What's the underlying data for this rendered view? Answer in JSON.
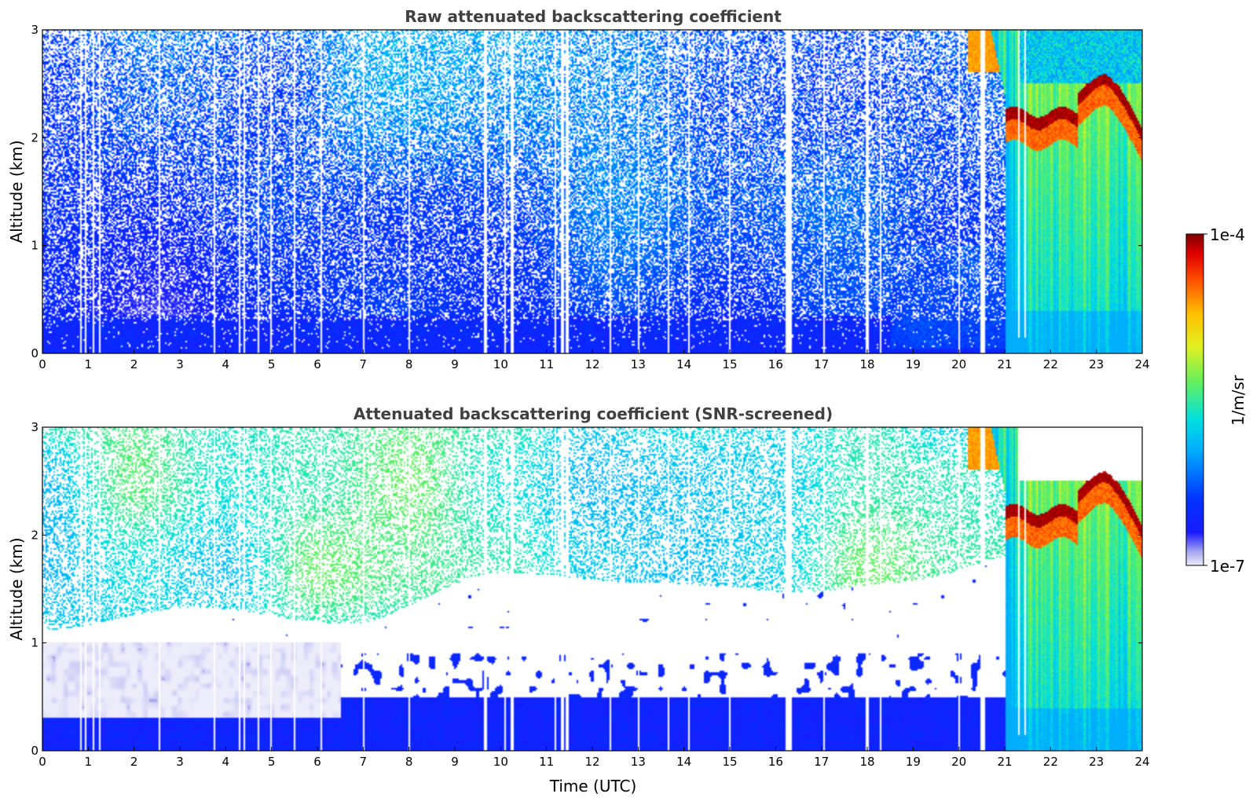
{
  "chart_data": [
    {
      "type": "heatmap",
      "title": "Raw attenuated backscattering coefficient",
      "xlabel": "",
      "ylabel": "Altitude (km)",
      "xlim": [
        0,
        24
      ],
      "ylim": [
        0,
        3
      ],
      "x_ticks": [
        0,
        1,
        2,
        3,
        4,
        5,
        6,
        7,
        8,
        9,
        10,
        11,
        12,
        13,
        14,
        15,
        16,
        17,
        18,
        19,
        20,
        21,
        22,
        23,
        24
      ],
      "y_ticks": [
        0,
        1,
        2,
        3
      ],
      "x_tick_labels": [
        "0",
        "1",
        "2",
        "3",
        "4",
        "5",
        "6",
        "7",
        "8",
        "9",
        "10",
        "11",
        "12",
        "13",
        "14",
        "15",
        "16",
        "17",
        "18",
        "19",
        "20",
        "21",
        "22",
        "23",
        "24"
      ],
      "y_tick_labels": [
        "0",
        "1",
        "2",
        "3"
      ],
      "screened": false
    },
    {
      "type": "heatmap",
      "title": "Attenuated backscattering coefficient (SNR-screened)",
      "xlabel": "Time (UTC)",
      "ylabel": "Altitude (km)",
      "xlim": [
        0,
        24
      ],
      "ylim": [
        0,
        3
      ],
      "x_ticks": [
        0,
        1,
        2,
        3,
        4,
        5,
        6,
        7,
        8,
        9,
        10,
        11,
        12,
        13,
        14,
        15,
        16,
        17,
        18,
        19,
        20,
        21,
        22,
        23,
        24
      ],
      "y_ticks": [
        0,
        1,
        2,
        3
      ],
      "x_tick_labels": [
        "0",
        "1",
        "2",
        "3",
        "4",
        "5",
        "6",
        "7",
        "8",
        "9",
        "10",
        "11",
        "12",
        "13",
        "14",
        "15",
        "16",
        "17",
        "18",
        "19",
        "20",
        "21",
        "22",
        "23",
        "24"
      ],
      "y_tick_labels": [
        "0",
        "1",
        "2",
        "3"
      ],
      "screened": true
    }
  ],
  "colorbar": {
    "label": "1/m/sr",
    "max_label": "1e-4",
    "min_label": "1e-7",
    "scale": "log",
    "range": [
      1e-07,
      0.0001
    ],
    "colormap": "jet-like with white-lavender low end"
  }
}
